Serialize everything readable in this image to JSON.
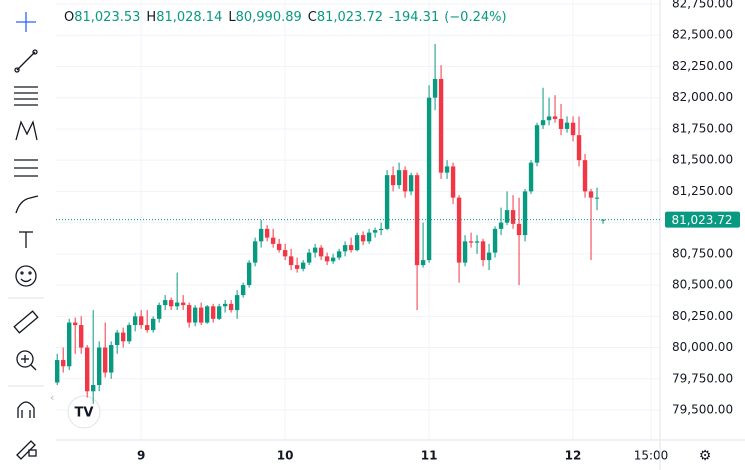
{
  "chart_data": {
    "type": "candlestick",
    "header": [
      {
        "label": "O",
        "value": "81,023.53"
      },
      {
        "label": "H",
        "value": "81,028.14"
      },
      {
        "label": "L",
        "value": "80,990.89"
      },
      {
        "label": "C",
        "value": "81,023.72"
      }
    ],
    "change": "-194.31",
    "change_percent": "(−0.24%)",
    "last_price": {
      "value": 81023.72,
      "label": "81,023.72"
    },
    "up_color": "#089981",
    "down_color": "#f23645",
    "grid": true,
    "ylim": [
      79260,
      82782
    ],
    "yticks": [
      {
        "value": 82750,
        "label": "82,750.00"
      },
      {
        "value": 82500,
        "label": "82,500.00"
      },
      {
        "value": 82250,
        "label": "82,250.00"
      },
      {
        "value": 82000,
        "label": "82,000.00"
      },
      {
        "value": 81750,
        "label": "81,750.00"
      },
      {
        "value": 81500,
        "label": "81,500.00"
      },
      {
        "value": 81250,
        "label": "81,250.00"
      },
      {
        "value": 81000,
        "label": "81,000.00"
      },
      {
        "value": 80750,
        "label": "80,750.00"
      },
      {
        "value": 80500,
        "label": "80,500.00"
      },
      {
        "value": 80250,
        "label": "80,250.00"
      },
      {
        "value": 80000,
        "label": "80,000.00"
      },
      {
        "value": 79750,
        "label": "79,750.00"
      },
      {
        "value": 79500,
        "label": "79,500.00"
      }
    ],
    "xlim": [
      -0.2,
      100.5
    ],
    "xticks": [
      {
        "value": 14,
        "label": "9"
      },
      {
        "value": 38,
        "label": "10"
      },
      {
        "value": 62,
        "label": "11"
      },
      {
        "value": 86,
        "label": "12"
      },
      {
        "value": 99,
        "label": "15:00"
      }
    ],
    "open": [
      79720,
      79900,
      79850,
      80200,
      80180,
      80000,
      79650,
      79700,
      80000,
      79800,
      80020,
      80120,
      80050,
      80180,
      80250,
      80180,
      80140,
      80230,
      80340,
      80380,
      80330,
      80360,
      80340,
      80200,
      80320,
      80200,
      80330,
      80230,
      80330,
      80350,
      80300,
      80420,
      80500,
      80680,
      80850,
      80950,
      80880,
      80830,
      80780,
      80730,
      80660,
      80630,
      80680,
      80760,
      80800,
      80730,
      80690,
      80720,
      80770,
      80820,
      80780,
      80900,
      80850,
      80920,
      80940,
      80950,
      81380,
      81300,
      81420,
      81250,
      81380,
      80660,
      80700,
      82000,
      82150,
      81400,
      81450,
      81200,
      80680,
      80850,
      80840,
      80850,
      80700,
      80760,
      80950,
      81000,
      81100,
      80990,
      80900,
      81250,
      81480,
      81780,
      81820,
      81850,
      81830,
      81750,
      81800,
      81700,
      81500,
      81250,
      81200,
      81023.53
    ],
    "high": [
      79950,
      80000,
      80230,
      80240,
      80250,
      80020,
      80300,
      80050,
      80200,
      80050,
      80140,
      80160,
      80200,
      80280,
      80300,
      80300,
      80250,
      80360,
      80420,
      80400,
      80600,
      80420,
      80360,
      80340,
      80360,
      80340,
      80350,
      80350,
      80380,
      80380,
      80460,
      80520,
      80700,
      80880,
      81020,
      80980,
      80950,
      80870,
      80830,
      80790,
      80720,
      80700,
      80790,
      80830,
      80820,
      80760,
      80750,
      80790,
      80850,
      80880,
      80920,
      80930,
      80950,
      80960,
      81000,
      81420,
      81450,
      81480,
      81450,
      81400,
      81400,
      81000,
      82100,
      82430,
      82260,
      81500,
      81480,
      81220,
      80900,
      80920,
      80900,
      80870,
      80830,
      80970,
      81120,
      81250,
      81220,
      81200,
      81270,
      81500,
      81800,
      82080,
      82000,
      82020,
      81950,
      81850,
      81850,
      81850,
      81550,
      81270,
      81280,
      81028.14
    ],
    "low": [
      79700,
      79800,
      79820,
      79950,
      79950,
      79600,
      79550,
      79650,
      79760,
      79750,
      79950,
      80000,
      80030,
      80130,
      80150,
      80120,
      80120,
      80200,
      80300,
      80300,
      80300,
      80300,
      80160,
      80170,
      80180,
      80190,
      80200,
      80220,
      80280,
      80280,
      80230,
      80400,
      80480,
      80650,
      80800,
      80850,
      80800,
      80760,
      80700,
      80620,
      80600,
      80610,
      80660,
      80720,
      80700,
      80660,
      80670,
      80700,
      80730,
      80760,
      80770,
      80820,
      80830,
      80880,
      80900,
      80940,
      81250,
      81270,
      81200,
      81220,
      80300,
      80640,
      80680,
      81900,
      81350,
      81350,
      81150,
      80520,
      80650,
      80800,
      80750,
      80650,
      80620,
      80720,
      80900,
      80980,
      80950,
      80500,
      80850,
      81230,
      81450,
      81750,
      81780,
      81800,
      81700,
      81720,
      81650,
      81450,
      81200,
      80700,
      81100,
      80990.89
    ],
    "close": [
      79900,
      79850,
      80200,
      80180,
      80000,
      79650,
      79700,
      80000,
      79800,
      80020,
      80120,
      80050,
      80180,
      80250,
      80180,
      80140,
      80230,
      80340,
      80380,
      80330,
      80360,
      80340,
      80200,
      80320,
      80200,
      80330,
      80230,
      80330,
      80350,
      80300,
      80420,
      80500,
      80680,
      80850,
      80950,
      80880,
      80830,
      80780,
      80730,
      80660,
      80630,
      80680,
      80760,
      80800,
      80730,
      80690,
      80720,
      80770,
      80820,
      80780,
      80900,
      80850,
      80920,
      80940,
      80950,
      81380,
      81300,
      81420,
      81250,
      81380,
      80660,
      80700,
      82000,
      82150,
      81400,
      81450,
      81200,
      80680,
      80850,
      80840,
      80850,
      80700,
      80760,
      80950,
      81000,
      81100,
      80990,
      80900,
      81250,
      81480,
      81780,
      81820,
      81850,
      81830,
      81750,
      81800,
      81700,
      81500,
      81250,
      81200,
      81200,
      81023.72
    ]
  }
}
